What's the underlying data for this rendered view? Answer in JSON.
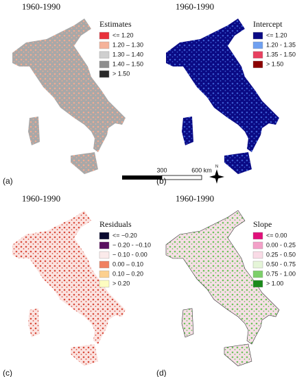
{
  "panels": [
    {
      "title": "1960-1990",
      "label": "(a)",
      "base": "#a8a8a8",
      "texture": "#f2ab92",
      "legend": {
        "title": "Estimates",
        "items": [
          {
            "label": "<= 1.20",
            "color": "#e8303a"
          },
          {
            "label": "1.20 – 1.30",
            "color": "#f5b29a"
          },
          {
            "label": "1.30 – 1.40",
            "color": "#cfcfcf"
          },
          {
            "label": "1.40 – 1.50",
            "color": "#8e8e8e"
          },
          {
            "label": "> 1.50",
            "color": "#2a2a2a"
          }
        ]
      }
    },
    {
      "title": "1960-1990",
      "label": "(b)",
      "base": "#0a0a84",
      "texture": "#3a5ad0",
      "legend": {
        "title": "Intercept",
        "items": [
          {
            "label": "<= 1.20",
            "color": "#0a0a84"
          },
          {
            "label": "1.20 - 1.35",
            "color": "#6fa0f0"
          },
          {
            "label": "1.35 - 1.50",
            "color": "#e84060"
          },
          {
            "label": "> 1.50",
            "color": "#8b0000"
          }
        ]
      }
    },
    {
      "title": "1960-1990",
      "label": "(c)",
      "base": "#fbe3e0",
      "texture": "#d84a3a",
      "legend": {
        "title": "Residuals",
        "items": [
          {
            "label": "<= −0.20",
            "color": "#0a0a30"
          },
          {
            "label": "− 0.20 - −0.10",
            "color": "#5a1060"
          },
          {
            "label": "− 0.10 - 0.00",
            "color": "#fbeaea"
          },
          {
            "label": "0.00 – 0.10",
            "color": "#f08060"
          },
          {
            "label": "0.10 – 0.20",
            "color": "#fcd090"
          },
          {
            "label": "> 0.20",
            "color": "#fdfcc0"
          }
        ]
      }
    },
    {
      "title": "1960-1990",
      "label": "(d)",
      "base": "#f6dfe6",
      "texture": "#6cc45a",
      "legend": {
        "title": "Slope",
        "items": [
          {
            "label": "<= 0.00",
            "color": "#e0107a"
          },
          {
            "label": "0.00 - 0.25",
            "color": "#f3a0c8"
          },
          {
            "label": "0.25 - 0.50",
            "color": "#f9dbe6"
          },
          {
            "label": "0.50 - 0.75",
            "color": "#e5f5d8"
          },
          {
            "label": "0.75 - 1.00",
            "color": "#7dcf6a"
          },
          {
            "label": "> 1.00",
            "color": "#1a8a1a"
          }
        ]
      }
    }
  ],
  "scale_bar": {
    "labels": [
      "300",
      "600 km"
    ]
  },
  "north": "N"
}
